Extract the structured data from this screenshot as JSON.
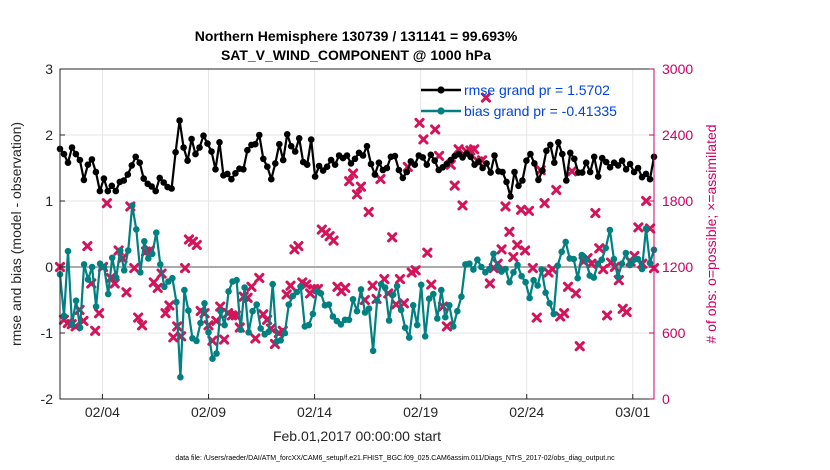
{
  "chart_data": {
    "type": "line",
    "title_line1": "Northern Hemisphere 130739 / 131141 = 99.693%",
    "title_line2": "SAT_V_WIND_COMPONENT @ 1000 hPa",
    "xlabel": "Feb.01,2017 00:00:00 start",
    "ylabel": "rmse and bias (model - observation)",
    "ylabel_right": "# of obs: o=possible; ×=assimilated",
    "footer": "data file: /Users/raeder/DAI/ATM_forcXX/CAM6_setup/f.e21.FHIST_BGC.f09_025.CAM6assim.011/Diags_NTrS_2017-02/obs_diag_output.nc",
    "xlim": [
      1.0,
      29.0
    ],
    "ylim": [
      -2,
      3
    ],
    "ylim_right": [
      0,
      3000
    ],
    "x_ticks": [
      3.0,
      8.0,
      13.0,
      18.0,
      23.0,
      28.0
    ],
    "x_tick_labels": [
      "02/04",
      "02/09",
      "02/14",
      "02/19",
      "02/24",
      "03/01"
    ],
    "y_ticks": [
      -2,
      -1,
      0,
      1,
      2,
      3
    ],
    "y_tick_labels": [
      "-2",
      "-1",
      "0",
      "1",
      "2",
      "3"
    ],
    "y_ticks_right": [
      0,
      600,
      1200,
      1800,
      2400,
      3000
    ],
    "y_tick_labels_right": [
      "0",
      "600",
      "1200",
      "1800",
      "2400",
      "3000"
    ],
    "grid": true,
    "legend_position": "top-right",
    "colors": {
      "rmse": "#000000",
      "bias": "#008080",
      "obs": "#d4145a",
      "zero_line": "#aaaaaa",
      "right_axis": "#cc0066",
      "legend_text": "#0044dd"
    },
    "series": [
      {
        "name": "rmse grand pr = 1.5702",
        "axis": "left",
        "values": [
          1.79,
          1.71,
          1.58,
          1.81,
          1.71,
          1.62,
          1.32,
          1.55,
          1.63,
          1.44,
          1.15,
          1.34,
          1.15,
          1.23,
          1.15,
          1.29,
          1.31,
          1.4,
          1.54,
          1.67,
          1.58,
          1.34,
          1.26,
          1.22,
          1.15,
          1.35,
          1.28,
          1.21,
          1.19,
          1.74,
          2.22,
          1.81,
          1.61,
          1.94,
          1.71,
          1.81,
          1.99,
          1.87,
          1.75,
          1.48,
          1.89,
          1.39,
          1.41,
          1.33,
          1.42,
          1.49,
          1.48,
          1.77,
          1.85,
          1.86,
          2.0,
          1.64,
          1.52,
          1.33,
          1.57,
          1.86,
          1.62,
          2.01,
          1.83,
          1.75,
          1.95,
          1.59,
          1.55,
          1.93,
          1.37,
          1.53,
          1.46,
          1.52,
          1.62,
          1.55,
          1.69,
          1.65,
          1.69,
          1.57,
          1.64,
          1.73,
          1.69,
          1.83,
          1.56,
          1.4,
          1.58,
          1.47,
          1.5,
          1.67,
          1.68,
          1.47,
          1.35,
          1.44,
          1.6,
          1.55,
          1.69,
          1.66,
          1.55,
          1.7,
          1.61,
          1.47,
          1.51,
          1.56,
          1.62,
          1.68,
          1.71,
          1.66,
          1.72,
          1.67,
          1.55,
          1.6,
          1.5,
          1.57,
          1.43,
          1.69,
          1.45,
          1.44,
          1.29,
          1.07,
          1.44,
          1.23,
          1.31,
          1.61,
          1.71,
          1.57,
          1.32,
          1.46,
          1.76,
          1.85,
          1.58,
          1.89,
          1.71,
          1.31,
          1.73,
          1.64,
          1.43,
          1.43,
          1.58,
          1.44,
          1.67,
          1.37,
          1.65,
          1.59,
          1.51,
          1.58,
          1.54,
          1.61,
          1.48,
          1.56,
          1.44,
          1.5,
          1.36,
          1.41,
          1.33,
          1.67
        ]
      },
      {
        "name": "bias grand pr = -0.41335",
        "axis": "left",
        "values": [
          -0.11,
          -0.74,
          0.24,
          -0.87,
          -0.51,
          -0.92,
          0.04,
          -0.19,
          0.0,
          -0.6,
          0.05,
          0.0,
          -0.41,
          0.14,
          -0.16,
          0.25,
          -0.05,
          0.25,
          0.93,
          0.57,
          -0.08,
          0.39,
          0.13,
          0.2,
          0.52,
          0.04,
          -0.3,
          -0.22,
          -0.17,
          -0.53,
          -1.67,
          -0.35,
          -0.66,
          -1.08,
          -1.12,
          -0.85,
          -0.55,
          -0.99,
          -1.39,
          -1.31,
          -0.67,
          -0.88,
          -0.37,
          -0.22,
          -0.2,
          -0.95,
          -0.31,
          -0.99,
          -0.67,
          -0.57,
          -0.93,
          -1.02,
          -0.98,
          -0.26,
          -1.13,
          -1.11,
          -1.0,
          -0.57,
          -0.44,
          -0.38,
          -0.3,
          -0.9,
          -0.88,
          -0.71,
          -0.37,
          -0.4,
          -0.58,
          -0.57,
          -0.75,
          -0.82,
          -0.87,
          -0.8,
          -0.8,
          -0.49,
          -0.67,
          -0.34,
          -0.69,
          -0.63,
          -1.27,
          -0.51,
          -0.26,
          -0.31,
          -0.81,
          -0.42,
          -0.29,
          -0.65,
          -0.92,
          -1.07,
          -0.58,
          -0.88,
          -0.27,
          -1.05,
          -0.48,
          -0.41,
          -0.78,
          -0.35,
          -0.76,
          -0.58,
          -0.9,
          -0.67,
          -0.45,
          0.04,
          0.05,
          -0.04,
          0.11,
          0.0,
          -0.08,
          -0.03,
          0.2,
          0.0,
          -0.07,
          -0.03,
          -0.23,
          -0.08,
          0.03,
          -0.14,
          -0.23,
          -0.47,
          -0.2,
          -0.28,
          -0.04,
          -0.39,
          -0.55,
          -0.71,
          0.02,
          0.23,
          0.38,
          0.13,
          0.12,
          -0.17,
          0.18,
          0.11,
          -0.13,
          -0.16,
          0.05,
          0.11,
          0.29,
          0.56,
          0.12,
          -0.15,
          0.05,
          0.21,
          0.03,
          0.11,
          0.12,
          -0.03,
          0.58,
          0.06,
          0.26
        ]
      }
    ],
    "obs_assimilated": {
      "name": "# of obs assimilated",
      "axis": "right",
      "values": [
        1200,
        720,
        690,
        680,
        660,
        810,
        710,
        1390,
        1050,
        620,
        780,
        1200,
        1780,
        1100,
        1050,
        1350,
        1280,
        970,
        1750,
        1190,
        740,
        670,
        1340,
        1350,
        1060,
        1010,
        1140,
        780,
        850,
        560,
        660,
        570,
        1190,
        1450,
        1430,
        1400,
        800,
        780,
        670,
        530,
        710,
        840,
        540,
        780,
        760,
        760,
        650,
        930,
        920,
        1020,
        550,
        1100,
        770,
        720,
        640,
        500,
        600,
        620,
        950,
        1030,
        1360,
        1390,
        1060,
        1040,
        960,
        1000,
        1000,
        1540,
        1510,
        1480,
        1440,
        1020,
        980,
        1010,
        1980,
        2050,
        1860,
        1930,
        900,
        1700,
        1030,
        910,
        2000,
        1090,
        960,
        1470,
        860,
        1090,
        870,
        2110,
        1150,
        1170,
        2510,
        2360,
        1330,
        1040,
        2450,
        2210,
        840,
        660,
        2130,
        1940,
        2270,
        1760,
        2250,
        2260,
        2270,
        2160,
        2170,
        2740,
        1050,
        1190,
        1230,
        1360,
        1750,
        1520,
        1290,
        1400,
        1720,
        1350,
        1710,
        1190,
        740,
        2080,
        1780,
        1150,
        1180,
        1900,
        750,
        780,
        1020,
        2070,
        960,
        480,
        1250,
        1280,
        1230,
        1690,
        1370,
        1180,
        760,
        1240,
        1200,
        1080,
        820,
        790,
        1250,
        1300,
        1560,
        1230,
        1800,
        1550,
        1190
      ]
    }
  }
}
